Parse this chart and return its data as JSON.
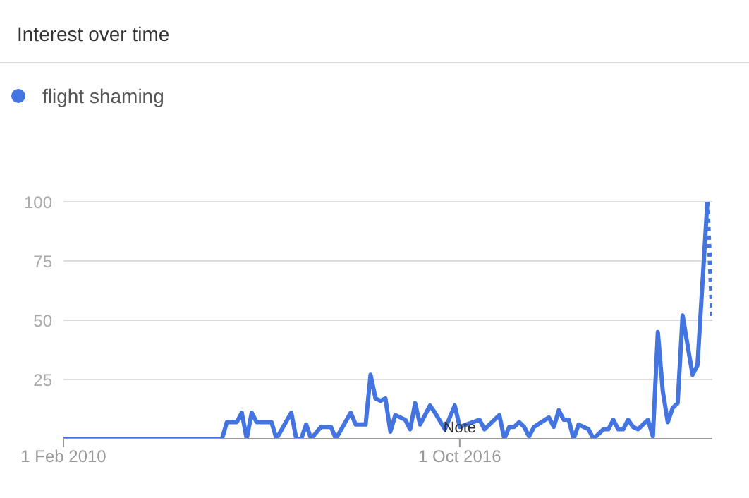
{
  "chart_data": {
    "type": "line",
    "title": "Interest over time",
    "series": [
      {
        "name": "flight shaming",
        "color": "#4374e0",
        "line_style": "solid",
        "x": [
          "2010-02",
          "2012-10",
          "2012-11",
          "2013-01",
          "2013-02",
          "2013-03",
          "2013-04",
          "2013-05",
          "2013-08",
          "2013-09",
          "2013-12",
          "2014-01",
          "2014-02",
          "2014-03",
          "2014-04",
          "2014-06",
          "2014-08",
          "2014-09",
          "2014-12",
          "2015-01",
          "2015-03",
          "2015-04",
          "2015-05",
          "2015-06",
          "2015-07",
          "2015-08",
          "2015-09",
          "2015-11",
          "2015-12",
          "2016-01",
          "2016-02",
          "2016-04",
          "2016-05",
          "2016-07",
          "2016-09",
          "2016-10",
          "2017-02",
          "2017-03",
          "2017-06",
          "2017-07",
          "2017-08",
          "2017-09",
          "2017-10",
          "2017-11",
          "2017-12",
          "2018-01",
          "2018-04",
          "2018-05",
          "2018-06",
          "2018-07",
          "2018-08",
          "2018-09",
          "2018-10",
          "2018-12",
          "2019-01",
          "2019-03",
          "2019-04",
          "2019-05",
          "2019-06",
          "2019-07",
          "2019-08",
          "2019-09",
          "2019-10",
          "2019-12",
          "2020-01",
          "2020-02",
          "2020-03",
          "2020-04",
          "2020-05",
          "2020-06",
          "2020-07",
          "2020-09",
          "2020-10",
          "2020-12"
        ],
        "values": [
          0,
          0,
          7,
          7,
          11,
          0,
          11,
          7,
          7,
          0,
          11,
          0,
          0,
          6,
          0,
          5,
          5,
          0,
          11,
          6,
          6,
          27,
          17,
          16,
          17,
          3,
          10,
          8,
          4,
          15,
          6,
          14,
          11,
          4,
          14,
          5,
          8,
          4,
          10,
          0,
          5,
          5,
          7,
          5,
          1,
          5,
          9,
          5,
          12,
          8,
          8,
          0,
          6,
          4,
          0,
          4,
          4,
          8,
          4,
          4,
          8,
          5,
          4,
          8,
          1,
          45,
          20,
          7,
          13,
          15,
          52,
          27,
          31,
          100
        ]
      },
      {
        "color": "#4374e0",
        "line_style": "dotted",
        "x": [
          "2020-12",
          "2021-01"
        ],
        "values": [
          100,
          50
        ]
      }
    ],
    "xlim": [
      "2010-02",
      "2021-01"
    ],
    "xticks": [
      {
        "value": "2010-02",
        "label": "1 Feb 2010"
      },
      {
        "value": "2016-10",
        "label": "1 Oct 2016"
      }
    ],
    "ylim": [
      0,
      100
    ],
    "yticks": [
      {
        "value": 0,
        "label": null
      },
      25,
      50,
      75,
      100
    ],
    "grid": "y",
    "legend": "top left",
    "marker": "none",
    "annotations": [
      {
        "text": "Note",
        "x": "2016-10",
        "y": 5
      }
    ]
  }
}
